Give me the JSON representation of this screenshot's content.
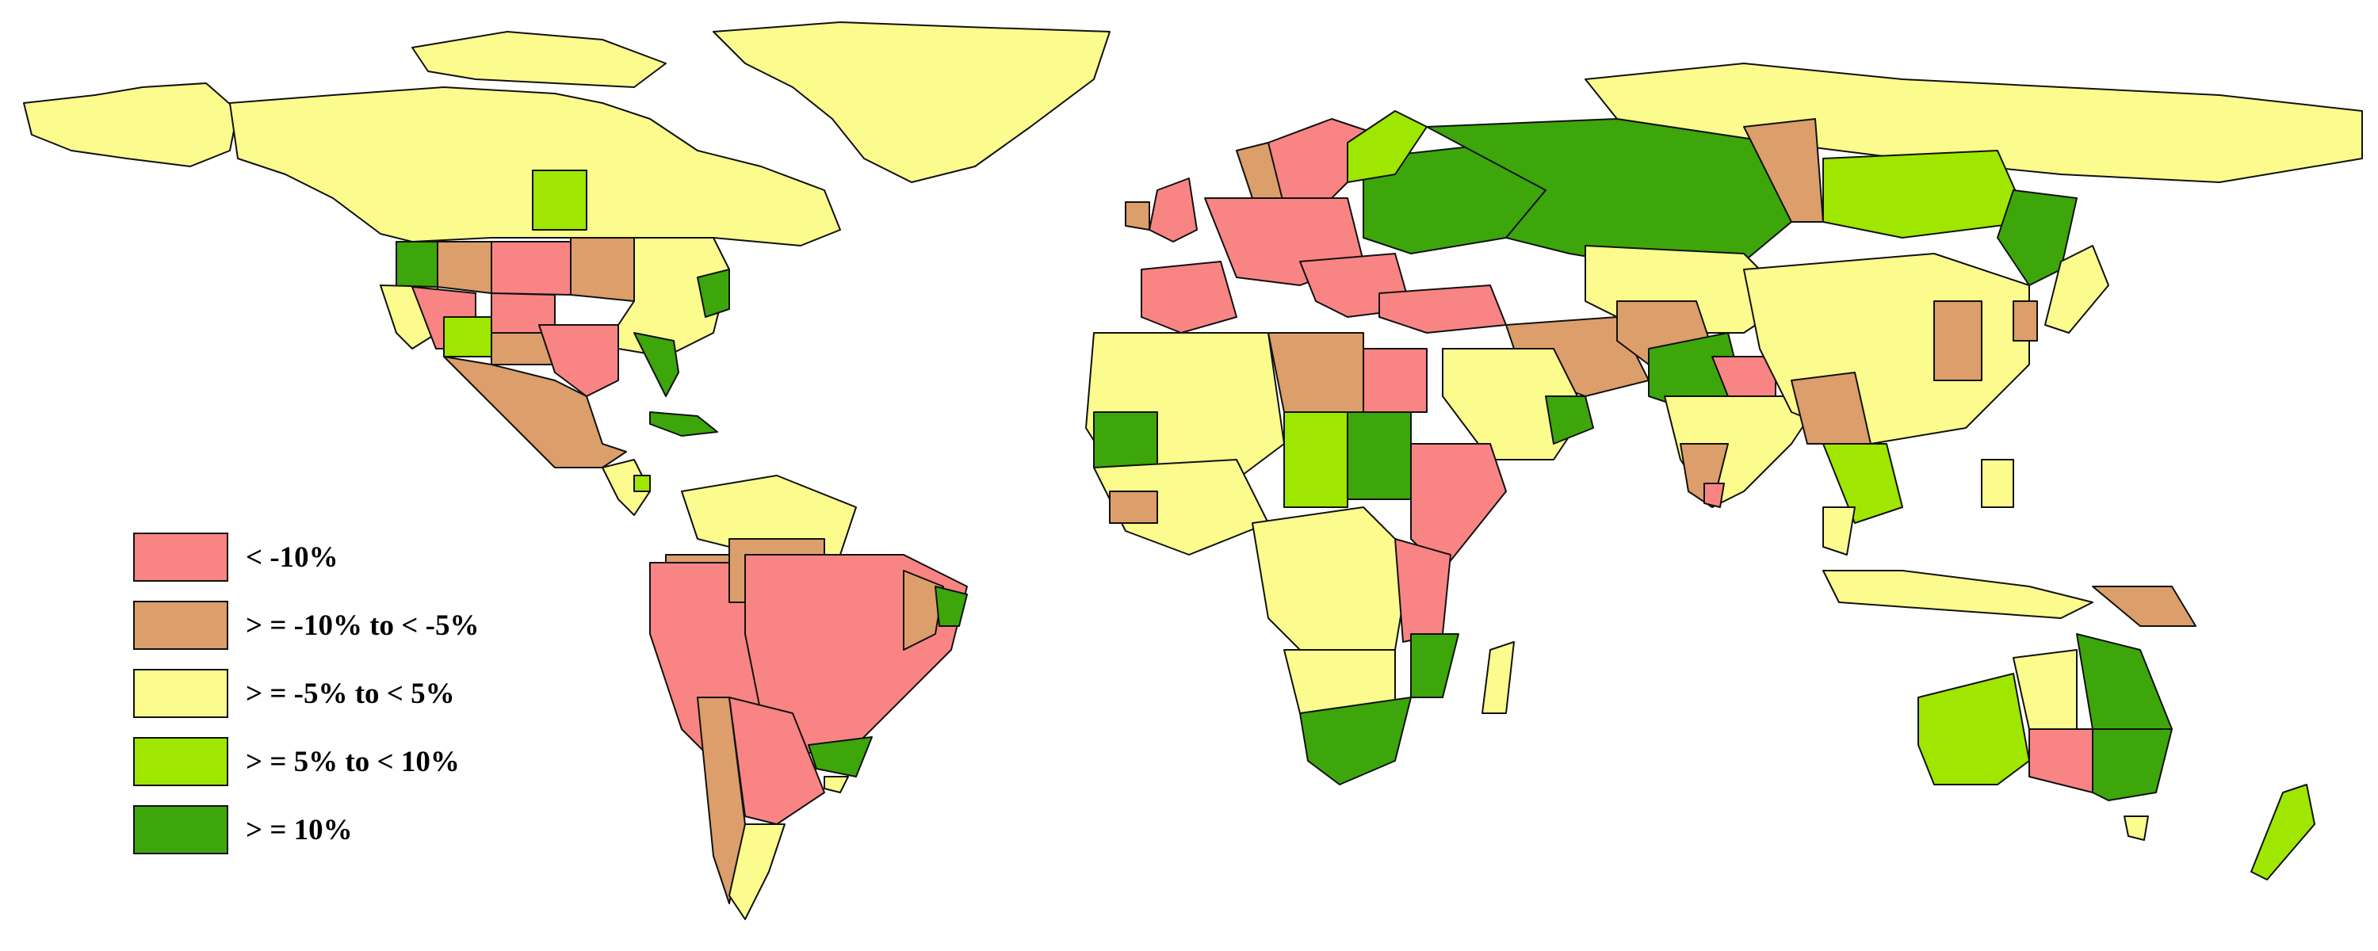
{
  "legend": {
    "items": [
      {
        "label": "< -10%",
        "color": "#f98484"
      },
      {
        "label": "> = -10% to < -5%",
        "color": "#dc9e6a"
      },
      {
        "label": "> = -5% to < 5%",
        "color": "#fbfb8e"
      },
      {
        "label": "> = 5% to < 10%",
        "color": "#9fe600"
      },
      {
        "label": "> = 10%",
        "color": "#3ca60a"
      }
    ]
  }
}
